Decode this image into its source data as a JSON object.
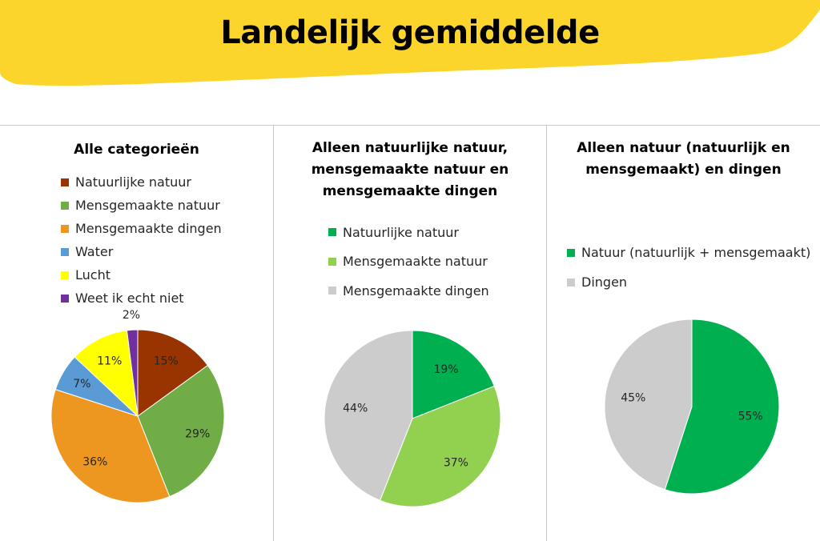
{
  "title": "Landelijk gemiddelde",
  "colors": {
    "banner": "#fcd52c"
  },
  "chart_data": [
    {
      "type": "pie",
      "title": "Alle categorieën",
      "series": [
        {
          "name": "Natuurlijke natuur",
          "value": 15,
          "label": "15%",
          "color": "#993300"
        },
        {
          "name": "Mensgemaakte natuur",
          "value": 29,
          "label": "29%",
          "color": "#70ad47"
        },
        {
          "name": "Mensgemaakte dingen",
          "value": 36,
          "label": "36%",
          "color": "#ed9720"
        },
        {
          "name": "Water",
          "value": 7,
          "label": "7%",
          "color": "#5b9bd5"
        },
        {
          "name": "Lucht",
          "value": 11,
          "label": "11%",
          "color": "#ffff00"
        },
        {
          "name": "Weet ik echt niet",
          "value": 2,
          "label": "2%",
          "color": "#7030a0"
        }
      ]
    },
    {
      "type": "pie",
      "title": "Alleen natuurlijke natuur, mensgemaakte natuur en mensgemaakte dingen",
      "series": [
        {
          "name": "Natuurlijke natuur",
          "value": 19,
          "label": "19%",
          "color": "#00b050"
        },
        {
          "name": "Mensgemaakte natuur",
          "value": 37,
          "label": "37%",
          "color": "#92d050"
        },
        {
          "name": "Mensgemaakte dingen",
          "value": 44,
          "label": "44%",
          "color": "#cccccc"
        }
      ]
    },
    {
      "type": "pie",
      "title": "Alleen natuur (natuurlijk en mensgemaakt) en dingen",
      "series": [
        {
          "name": "Natuur (natuurlijk + mensgemaakt)",
          "value": 55,
          "label": "55%",
          "color": "#00b050"
        },
        {
          "name": "Dingen",
          "value": 45,
          "label": "45%",
          "color": "#cccccc"
        }
      ]
    }
  ]
}
